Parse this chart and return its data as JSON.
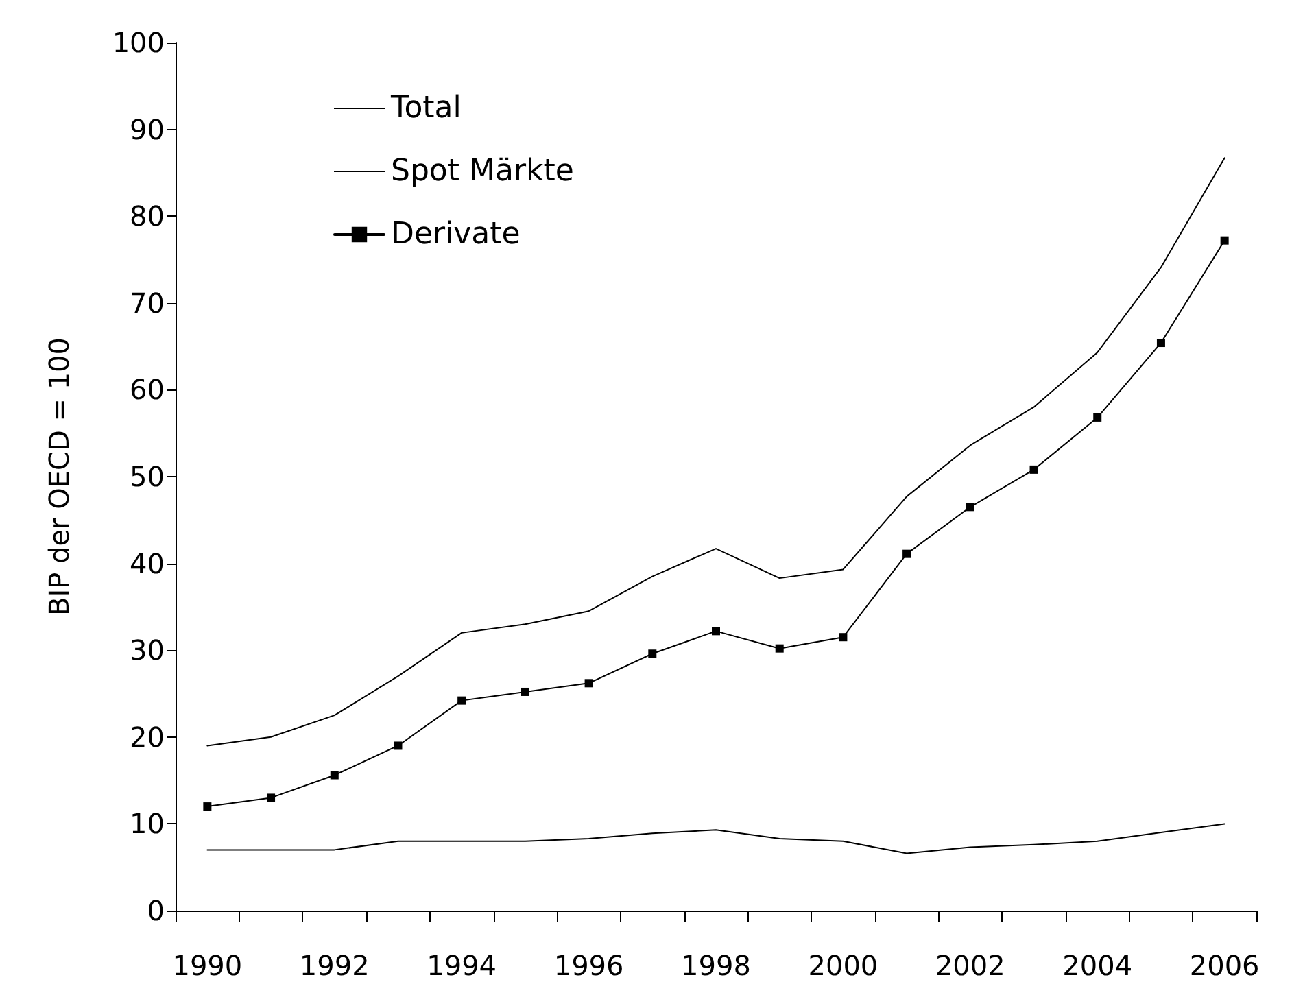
{
  "chart_data": {
    "type": "line",
    "ylabel": "BIP der OECD = 100",
    "categories": [
      "1990",
      null,
      "1992",
      null,
      "1994",
      null,
      "1996",
      null,
      "1998",
      null,
      "2000",
      null,
      "2002",
      null,
      "2004",
      null,
      "2006"
    ],
    "series": [
      {
        "name": "Total",
        "color": "#000000",
        "marker": "none",
        "values": [
          19,
          20,
          22.5,
          27,
          32,
          33,
          34.5,
          38.5,
          41.7,
          38.3,
          39.3,
          47.7,
          53.6,
          58,
          64.3,
          74.1,
          86.7
        ]
      },
      {
        "name": "Spot Märkte",
        "color": "#000000",
        "marker": "none",
        "values": [
          7,
          7,
          7,
          8,
          8,
          8,
          8.3,
          8.9,
          9.3,
          8.3,
          8,
          6.6,
          7.3,
          7.6,
          8,
          9,
          10
        ]
      },
      {
        "name": "Derivate",
        "color": "#000000",
        "marker": "square",
        "values": [
          12,
          13,
          15.6,
          19,
          24.2,
          25.2,
          26.2,
          29.6,
          32.2,
          30.2,
          31.5,
          41.1,
          46.5,
          50.8,
          56.8,
          65.4,
          77.2
        ]
      }
    ],
    "ylim": [
      0,
      100
    ],
    "yticks": [
      0,
      10,
      20,
      30,
      40,
      50,
      60,
      70,
      80,
      90,
      100
    ],
    "grid": false,
    "legend": "top left",
    "line_style": "solid"
  }
}
